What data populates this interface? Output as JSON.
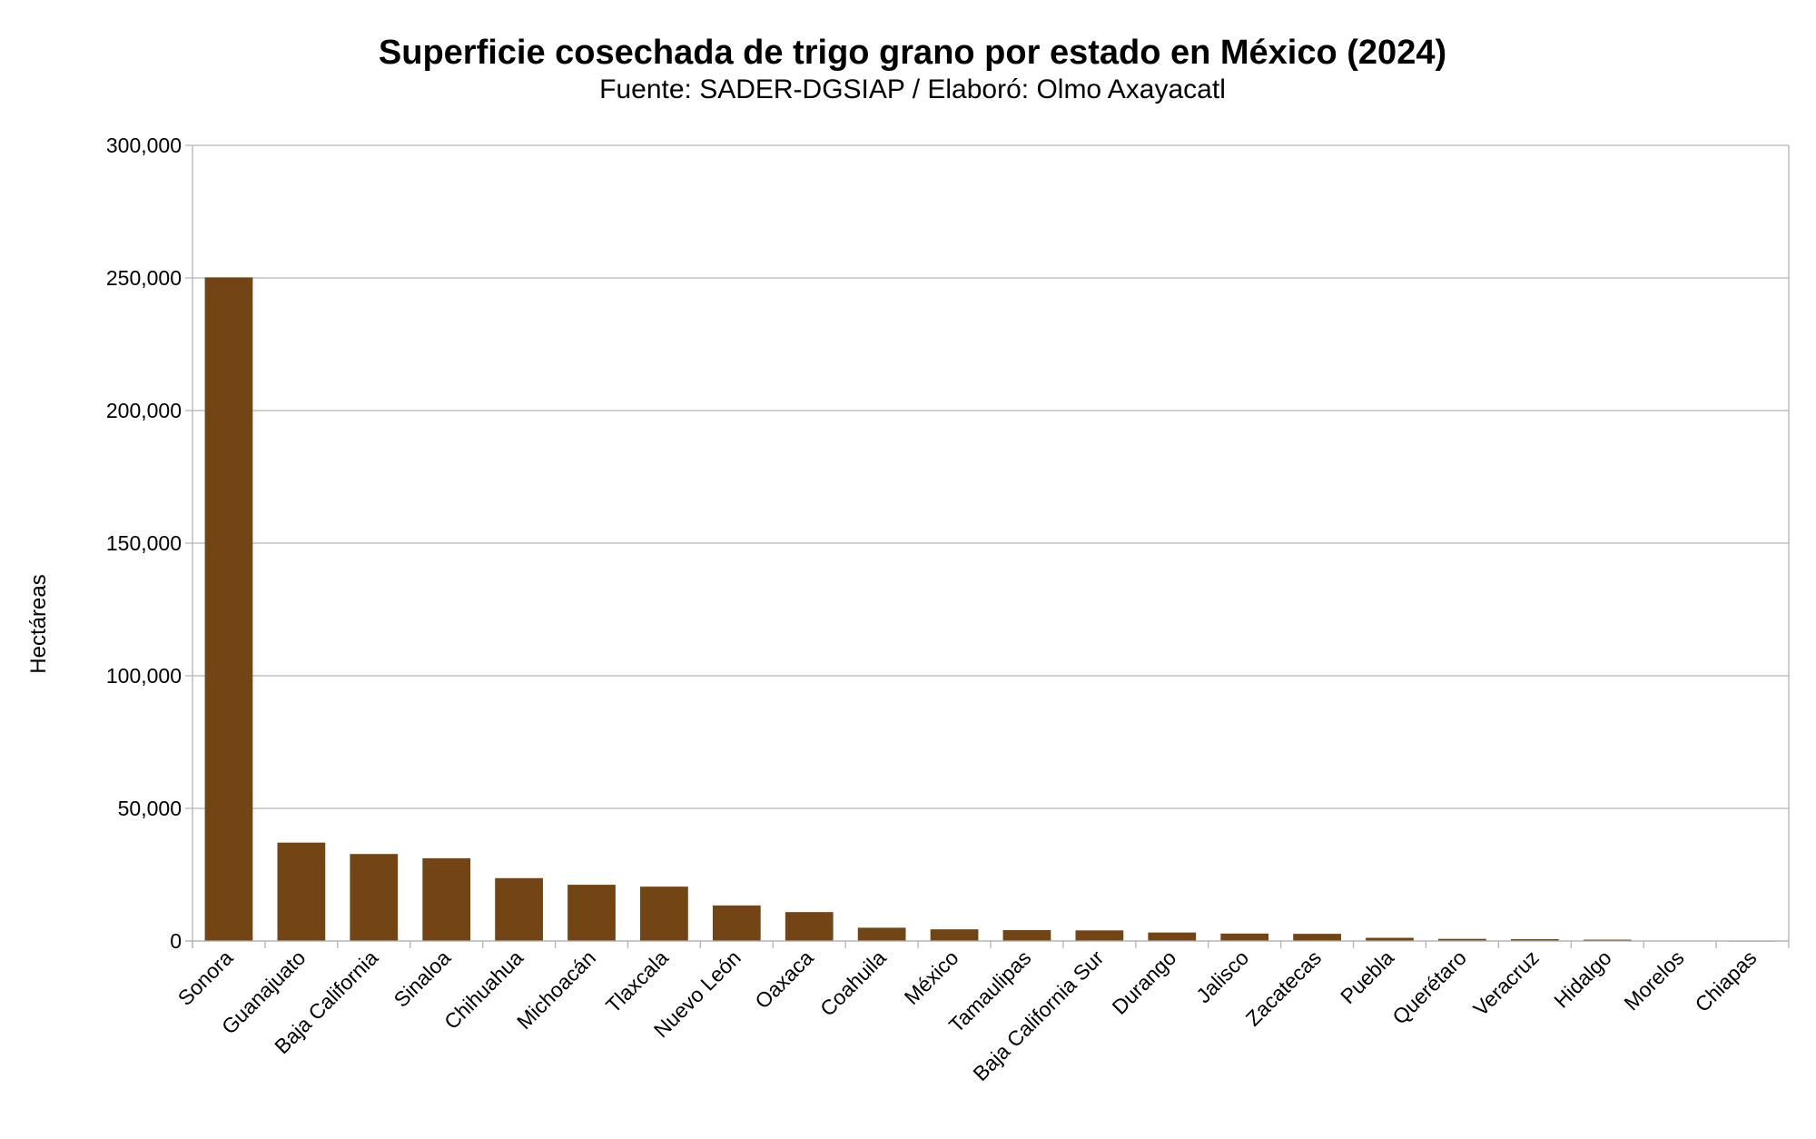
{
  "chart_data": {
    "type": "bar",
    "title": "Superficie cosechada de trigo grano por estado en México (2024)",
    "subtitle": "Fuente: SADER-DGSIAP / Elaboró: Olmo Axayacatl",
    "xlabel": "",
    "ylabel": "Hectáreas",
    "ylim": [
      0,
      300000
    ],
    "yticks": [
      0,
      50000,
      100000,
      150000,
      200000,
      250000,
      300000
    ],
    "ytick_labels": [
      "0",
      "50,000",
      "100,000",
      "150,000",
      "200,000",
      "250,000",
      "300,000"
    ],
    "grid": true,
    "bar_color": "#734414",
    "categories": [
      "Sonora",
      "Guanajuato",
      "Baja California",
      "Sinaloa",
      "Chihuahua",
      "Michoacán",
      "Tlaxcala",
      "Nuevo León",
      "Oaxaca",
      "Coahuila",
      "México",
      "Tamaulipas",
      "Baja California Sur",
      "Durango",
      "Jalisco",
      "Zacatecas",
      "Puebla",
      "Querétaro",
      "Veracruz",
      "Hidalgo",
      "Morelos",
      "Chiapas"
    ],
    "values": [
      250200,
      37100,
      32800,
      31200,
      23700,
      21200,
      20500,
      13400,
      10900,
      5000,
      4400,
      4100,
      4000,
      3200,
      2800,
      2700,
      1200,
      800,
      700,
      500,
      150,
      50
    ]
  }
}
